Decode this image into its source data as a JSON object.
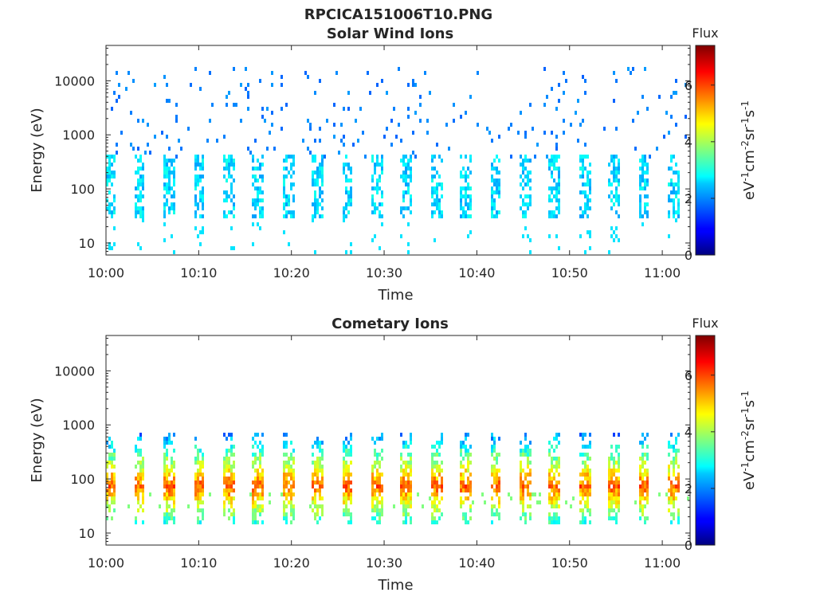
{
  "figure_title": "RPCICA151006T10.PNG",
  "chart_data": [
    {
      "type": "heatmap",
      "title": "Solar Wind Ions",
      "xlabel": "Time",
      "ylabel": "Energy (eV)",
      "x_tick_labels": [
        "10:00",
        "10:10",
        "10:20",
        "10:30",
        "10:40",
        "10:50",
        "11:00"
      ],
      "x_ticks_minutes_after_10": [
        0,
        10,
        20,
        30,
        40,
        50,
        60
      ],
      "xlim_minutes_after_10": [
        0,
        63
      ],
      "y_scale": "log",
      "y_tick_labels": [
        "10",
        "100",
        "1000",
        "10000"
      ],
      "y_ticks": [
        10,
        100,
        1000,
        10000
      ],
      "ylim": [
        6,
        45000
      ],
      "colorbar": {
        "label": "Flux",
        "unit_label": "eV-1cm-2sr-1s-1",
        "tick_labels": [
          "0",
          "2",
          "4",
          "6"
        ],
        "ticks": [
          0,
          2,
          4,
          6
        ],
        "range": [
          0,
          7.4
        ],
        "colormap": "jet"
      }
    },
    {
      "type": "heatmap",
      "title": "Cometary Ions",
      "xlabel": "Time",
      "ylabel": "Energy (eV)",
      "x_tick_labels": [
        "10:00",
        "10:10",
        "10:20",
        "10:30",
        "10:40",
        "10:50",
        "11:00"
      ],
      "x_ticks_minutes_after_10": [
        0,
        10,
        20,
        30,
        40,
        50,
        60
      ],
      "xlim_minutes_after_10": [
        0,
        63
      ],
      "y_scale": "log",
      "y_tick_labels": [
        "10",
        "100",
        "1000",
        "10000"
      ],
      "y_ticks": [
        10,
        100,
        1000,
        10000
      ],
      "ylim": [
        6,
        45000
      ],
      "colorbar": {
        "label": "Flux",
        "unit_label": "eV-1cm-2sr-1s-1",
        "tick_labels": [
          "0",
          "2",
          "4",
          "6"
        ],
        "ticks": [
          0,
          2,
          4,
          6
        ],
        "range": [
          0,
          7.4
        ],
        "colormap": "jet"
      }
    }
  ]
}
